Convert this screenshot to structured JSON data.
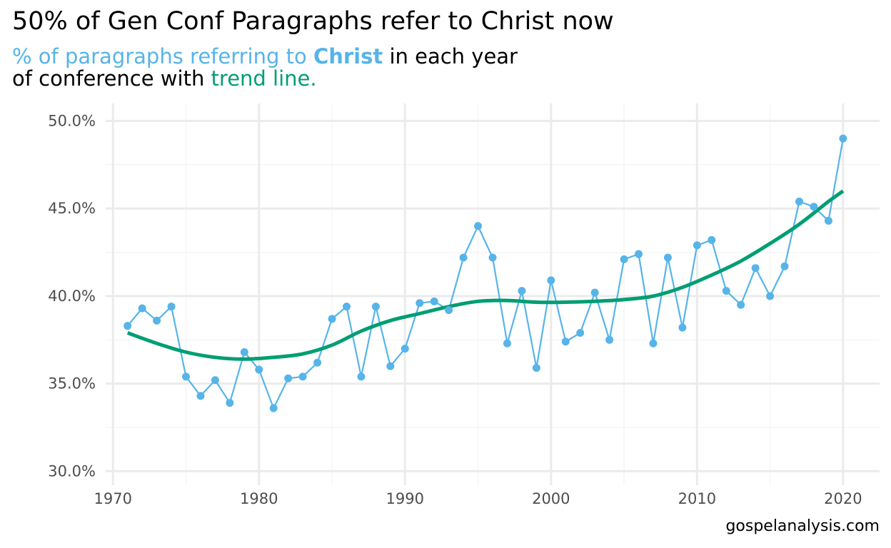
{
  "title": "50% of Gen Conf Paragraphs refer to Christ now",
  "subtitle": {
    "line1_part1": "% of paragraphs referring to ",
    "line1_bold": "Christ",
    "line1_part2": " in each year",
    "line2_part1": "of conference with ",
    "line2_green": "trend line."
  },
  "caption": "gospelanalysis.com",
  "colors": {
    "points": "#56B4E9",
    "trend": "#009E73",
    "grid_major": "#ebebeb",
    "grid_minor": "#f5f5f5",
    "tick_text": "#4d4d4d"
  },
  "chart_data": {
    "type": "line",
    "title": "50% of Gen Conf Paragraphs refer to Christ now",
    "xlabel": "",
    "ylabel": "",
    "xlim": [
      1969.5,
      2022.5
    ],
    "ylim": [
      29.2,
      51.0
    ],
    "x_ticks": [
      1970,
      1980,
      1990,
      2000,
      2010,
      2020
    ],
    "x_tick_labels": [
      "1970",
      "1980",
      "1990",
      "2000",
      "2010",
      "2020"
    ],
    "y_ticks": [
      30,
      35,
      40,
      45,
      50
    ],
    "y_tick_labels": [
      "30.0%",
      "35.0%",
      "40.0%",
      "45.0%",
      "50.0%"
    ],
    "grid": true,
    "series": [
      {
        "x": [
          1971,
          1972,
          1973,
          1974,
          1975,
          1976,
          1977,
          1978,
          1979,
          1980,
          1981,
          1982,
          1983,
          1984,
          1985,
          1986,
          1987,
          1988,
          1989,
          1990,
          1991,
          1992,
          1993,
          1994,
          1995,
          1996,
          1997,
          1998,
          1999,
          2000,
          2001,
          2002,
          2003,
          2004,
          2005,
          2006,
          2007,
          2008,
          2009,
          2010,
          2011,
          2012,
          2013,
          2014,
          2015,
          2016,
          2017,
          2018,
          2019,
          2020
        ],
        "values": [
          38.3,
          39.3,
          38.6,
          39.4,
          35.4,
          34.3,
          35.2,
          33.9,
          36.8,
          35.8,
          33.6,
          35.3,
          35.4,
          36.2,
          38.7,
          39.4,
          35.4,
          39.4,
          36.0,
          37.0,
          39.6,
          39.7,
          39.2,
          42.2,
          44.0,
          42.2,
          37.3,
          40.3,
          35.9,
          40.9,
          37.4,
          37.9,
          40.2,
          37.5,
          42.1,
          42.4,
          37.3,
          42.2,
          38.2,
          42.9,
          43.2,
          40.3,
          39.5,
          41.6,
          40.0,
          41.7,
          45.4,
          45.1,
          44.3,
          49.0
        ]
      },
      {
        "x": [
          1971,
          1973,
          1975,
          1977,
          1979,
          1981,
          1983,
          1985,
          1987,
          1989,
          1991,
          1993,
          1995,
          1997,
          1999,
          2001,
          2003,
          2005,
          2007,
          2009,
          2011,
          2013,
          2015,
          2017,
          2019,
          2020
        ],
        "values": [
          37.9,
          37.3,
          36.8,
          36.5,
          36.4,
          36.5,
          36.7,
          37.2,
          38.0,
          38.6,
          39.0,
          39.4,
          39.7,
          39.75,
          39.65,
          39.65,
          39.7,
          39.8,
          40.0,
          40.5,
          41.2,
          42.0,
          43.0,
          44.1,
          45.4,
          46.0
        ]
      }
    ]
  }
}
